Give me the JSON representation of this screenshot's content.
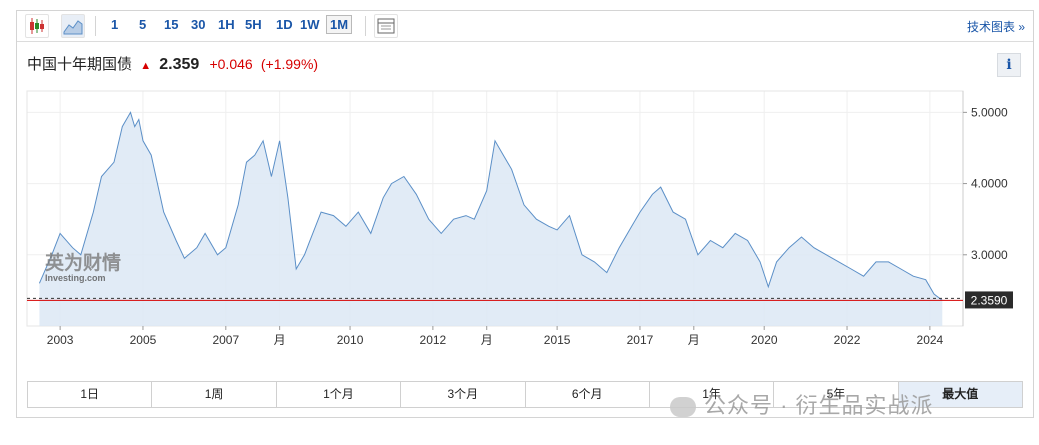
{
  "toolbar": {
    "intervals": [
      "1",
      "5",
      "15",
      "30",
      "1H",
      "5H",
      "1D",
      "1W",
      "1M"
    ],
    "selected_interval": "1M",
    "tech_chart_label": "技术图表 »"
  },
  "header": {
    "instrument": "中国十年期国债",
    "price": "2.359",
    "change": "+0.046",
    "change_pct": "(+1.99%)",
    "info_label": "i"
  },
  "watermark": {
    "logo_text": "英为财情",
    "logo_sub": "Investing.com",
    "wechat": "公众号 · 衍生品实战派"
  },
  "ranges": {
    "items": [
      "1日",
      "1周",
      "1个月",
      "3个月",
      "6个月",
      "1年",
      "5年",
      "最大值"
    ],
    "active": "最大值"
  },
  "chart_data": {
    "type": "area",
    "ylim": [
      2.0,
      5.3
    ],
    "yticks": [
      "5.0000",
      "4.0000",
      "3.0000"
    ],
    "ytick_values": [
      5.0,
      4.0,
      3.0
    ],
    "current_label": "2.3590",
    "current_value": 2.359,
    "xtick_labels": [
      "2003",
      "2005",
      "2007",
      "月",
      "2010",
      "2012",
      "月",
      "2015",
      "2017",
      "月",
      "2020",
      "2022",
      "2024"
    ],
    "xtick_years": [
      2003,
      2005,
      2007,
      2008.3,
      2010,
      2012,
      2013.3,
      2015,
      2017,
      2018.3,
      2020,
      2022,
      2024
    ],
    "colors": {
      "line": "#5b8fc7",
      "fill": "#dce8f4",
      "current": "#d60000"
    },
    "x": [
      2002.5,
      2002.8,
      2003.0,
      2003.3,
      2003.5,
      2003.8,
      2004.0,
      2004.3,
      2004.5,
      2004.7,
      2004.8,
      2004.9,
      2005.0,
      2005.2,
      2005.5,
      2005.8,
      2006.0,
      2006.3,
      2006.5,
      2006.8,
      2007.0,
      2007.3,
      2007.5,
      2007.7,
      2007.9,
      2008.1,
      2008.3,
      2008.5,
      2008.7,
      2008.9,
      2009.0,
      2009.3,
      2009.6,
      2009.9,
      2010.2,
      2010.5,
      2010.8,
      2011.0,
      2011.3,
      2011.6,
      2011.9,
      2012.2,
      2012.5,
      2012.8,
      2013.0,
      2013.3,
      2013.5,
      2013.7,
      2013.9,
      2014.2,
      2014.5,
      2014.8,
      2015.0,
      2015.3,
      2015.6,
      2015.9,
      2016.2,
      2016.5,
      2016.8,
      2017.0,
      2017.3,
      2017.5,
      2017.8,
      2018.1,
      2018.4,
      2018.7,
      2019.0,
      2019.3,
      2019.6,
      2019.9,
      2020.1,
      2020.3,
      2020.6,
      2020.9,
      2021.2,
      2021.5,
      2021.8,
      2022.1,
      2022.4,
      2022.7,
      2023.0,
      2023.3,
      2023.6,
      2023.9,
      2024.1,
      2024.3
    ],
    "y": [
      2.6,
      3.0,
      3.3,
      3.1,
      3.0,
      3.6,
      4.1,
      4.3,
      4.8,
      5.0,
      4.8,
      4.9,
      4.6,
      4.4,
      3.6,
      3.2,
      2.95,
      3.1,
      3.3,
      3.0,
      3.1,
      3.7,
      4.3,
      4.4,
      4.6,
      4.1,
      4.6,
      3.8,
      2.8,
      3.0,
      3.15,
      3.6,
      3.55,
      3.4,
      3.6,
      3.3,
      3.8,
      4.0,
      4.1,
      3.85,
      3.5,
      3.3,
      3.5,
      3.55,
      3.5,
      3.9,
      4.6,
      4.4,
      4.2,
      3.7,
      3.5,
      3.4,
      3.35,
      3.55,
      3.0,
      2.9,
      2.75,
      3.1,
      3.4,
      3.6,
      3.85,
      3.95,
      3.6,
      3.5,
      3.0,
      3.2,
      3.1,
      3.3,
      3.2,
      2.9,
      2.55,
      2.9,
      3.1,
      3.25,
      3.1,
      3.0,
      2.9,
      2.8,
      2.7,
      2.9,
      2.9,
      2.8,
      2.7,
      2.65,
      2.45,
      2.36
    ]
  }
}
